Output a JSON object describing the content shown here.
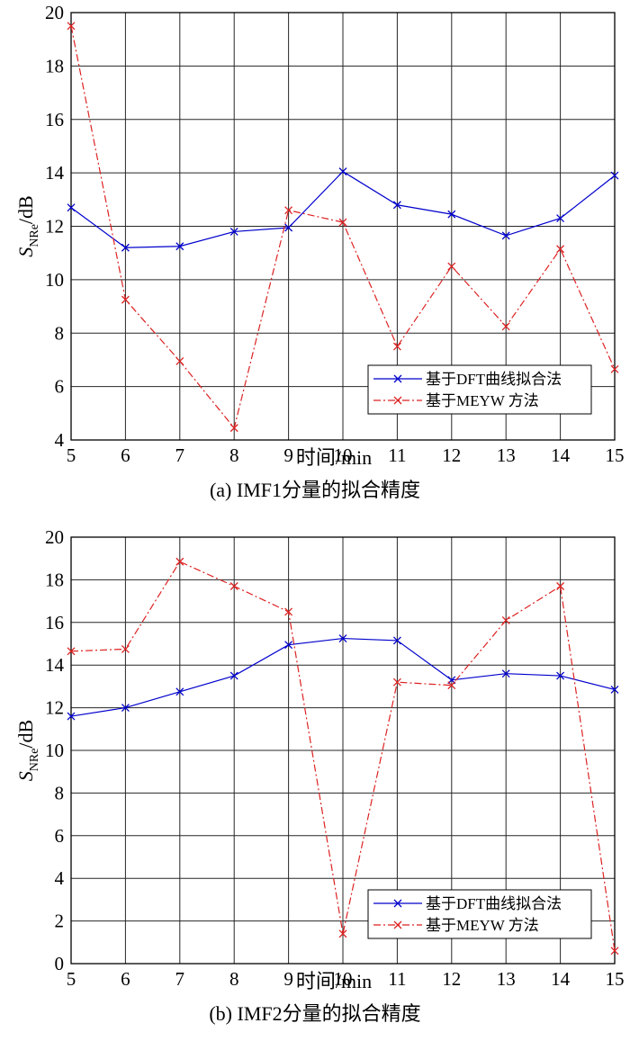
{
  "chart_data": [
    {
      "type": "line",
      "caption": "(a) IMF1分量的拟合精度",
      "xlabel": "时间/min",
      "ylabel_main": "S",
      "ylabel_sub": "NRe",
      "ylabel_unit": "/dB",
      "x": [
        5,
        6,
        7,
        8,
        9,
        10,
        11,
        12,
        13,
        14,
        15
      ],
      "xlim": [
        5,
        15
      ],
      "ylim": [
        4,
        20
      ],
      "xticks": [
        "5",
        "6",
        "7",
        "8",
        "9",
        "10",
        "11",
        "12",
        "13",
        "14",
        "15"
      ],
      "yticks": [
        "4",
        "6",
        "8",
        "10",
        "12",
        "14",
        "16",
        "18",
        "20"
      ],
      "grid": true,
      "legend_position": "bottom-right",
      "series": [
        {
          "name": "基于DFT曲线拟合法",
          "color": "#0000cc",
          "style": "solid",
          "values": [
            12.7,
            11.2,
            11.25,
            11.8,
            11.95,
            14.05,
            12.8,
            12.45,
            11.65,
            12.3,
            13.9
          ]
        },
        {
          "name": "基于MEYW 方法",
          "color": "#dd2222",
          "style": "dashdot",
          "values": [
            19.5,
            9.25,
            6.95,
            4.45,
            12.6,
            12.15,
            7.5,
            10.5,
            8.25,
            11.15,
            6.65
          ]
        }
      ]
    },
    {
      "type": "line",
      "caption": "(b) IMF2分量的拟合精度",
      "xlabel": "时间/min",
      "ylabel_main": "S",
      "ylabel_sub": "NRe",
      "ylabel_unit": "/dB",
      "x": [
        5,
        6,
        7,
        8,
        9,
        10,
        11,
        12,
        13,
        14,
        15
      ],
      "xlim": [
        5,
        15
      ],
      "ylim": [
        0,
        20
      ],
      "xticks": [
        "5",
        "6",
        "7",
        "8",
        "9",
        "10",
        "11",
        "12",
        "13",
        "14",
        "15"
      ],
      "yticks": [
        "0",
        "2",
        "4",
        "6",
        "8",
        "10",
        "12",
        "14",
        "16",
        "18",
        "20"
      ],
      "grid": true,
      "legend_position": "bottom-right",
      "series": [
        {
          "name": "基于DFT曲线拟合法",
          "color": "#0000cc",
          "style": "solid",
          "values": [
            11.6,
            12.0,
            12.75,
            13.5,
            14.95,
            15.25,
            15.15,
            13.3,
            13.6,
            13.5,
            12.85
          ]
        },
        {
          "name": "基于MEYW 方法",
          "color": "#dd2222",
          "style": "dashdot",
          "values": [
            14.65,
            14.75,
            18.85,
            17.7,
            16.5,
            1.4,
            13.2,
            13.05,
            16.1,
            17.7,
            0.6
          ]
        }
      ]
    }
  ]
}
